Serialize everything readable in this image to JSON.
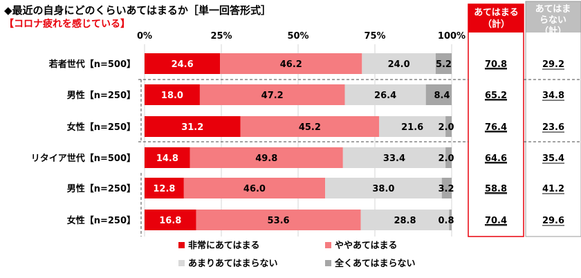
{
  "title": "◆最近の自身にどのくらいあてはまるか［単一回答形式］",
  "subtitle": "【コロナ疲れを感じている】",
  "summary_headers": {
    "applies": [
      "あてはまる",
      "（計）"
    ],
    "not_applies": [
      "あてはま",
      "らない",
      "（計）"
    ]
  },
  "colors": {
    "very": "#e8000b",
    "somewhat": "#f57c80",
    "not_much": "#d9d9d9",
    "not_at_all": "#a6a6a6",
    "applies_header": "#e8000b",
    "not_applies_header": "#bfbfbf"
  },
  "chart_data": {
    "type": "bar",
    "orientation": "horizontal",
    "stacked": true,
    "xlim": [
      0,
      100
    ],
    "ticks": [
      "0%",
      "25%",
      "50%",
      "75%",
      "100%"
    ],
    "categories": [
      "若者世代【n=500】",
      "男性【n=250】",
      "女性【n=250】",
      "リタイア世代【n=500】",
      "男性【n=250】",
      "女性【n=250】"
    ],
    "series": [
      {
        "name": "非常にあてはまる",
        "values": [
          24.6,
          18.0,
          31.2,
          14.8,
          12.8,
          16.8
        ]
      },
      {
        "name": "ややあてはまる",
        "values": [
          46.2,
          47.2,
          45.2,
          49.8,
          46.0,
          53.6
        ]
      },
      {
        "name": "あまりあてはまらない",
        "values": [
          24.0,
          26.4,
          21.6,
          33.4,
          38.0,
          28.8
        ]
      },
      {
        "name": "全くあてはまらない",
        "values": [
          5.2,
          8.4,
          2.0,
          2.0,
          3.2,
          0.8
        ]
      }
    ],
    "value_labels": [
      [
        "24.6",
        "46.2",
        "24.0",
        "5.2"
      ],
      [
        "18.0",
        "47.2",
        "26.4",
        "8.4"
      ],
      [
        "31.2",
        "45.2",
        "21.6",
        "2.0"
      ],
      [
        "14.8",
        "49.8",
        "33.4",
        "2.0"
      ],
      [
        "12.8",
        "46.0",
        "38.0",
        "3.2"
      ],
      [
        "16.8",
        "53.6",
        "28.8",
        "0.8"
      ]
    ],
    "applies_total": [
      "70.8",
      "65.2",
      "76.4",
      "64.6",
      "58.8",
      "70.4"
    ],
    "not_applies_total": [
      "29.2",
      "34.8",
      "23.6",
      "35.4",
      "41.2",
      "29.6"
    ],
    "legend_position": "bottom"
  }
}
